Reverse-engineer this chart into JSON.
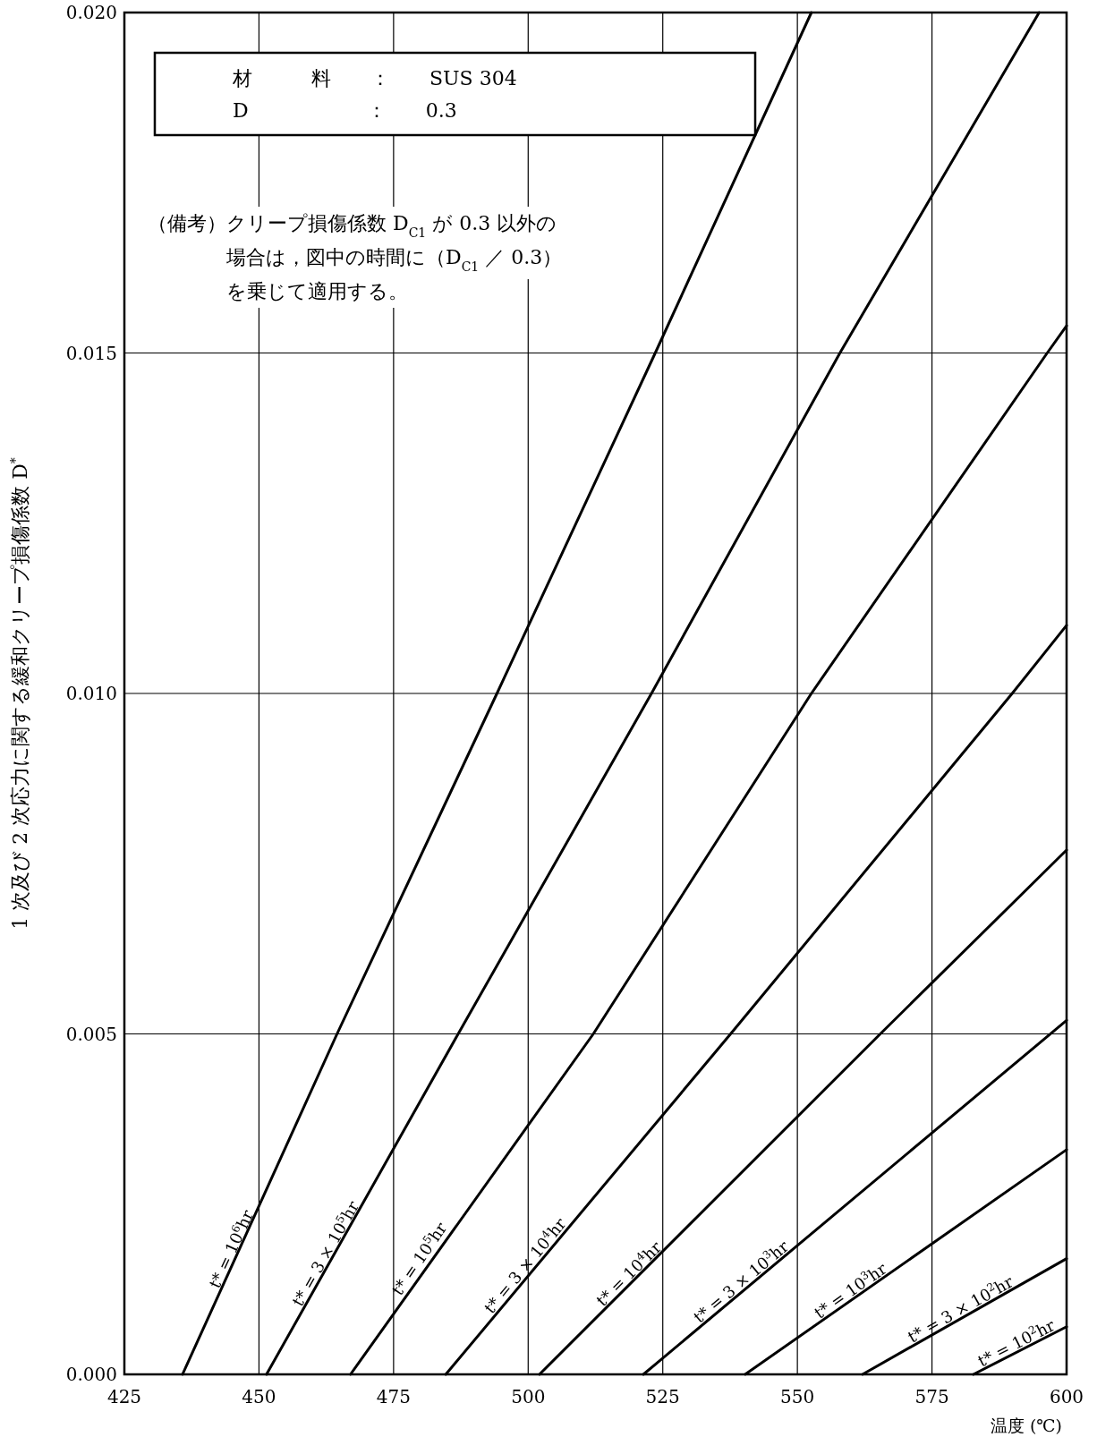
{
  "chart_data": {
    "type": "line",
    "xlabel": "温度 (℃)",
    "ylabel": "1 次及び 2 次応力に関する緩和クリープ損傷係数 D$^{*}$",
    "annotations": [
      "材　　　料　　：　　SUS 304",
      "D　　　　　　：　　0.3",
      "（備考）クリープ損傷係数 D$_{C1}$ が 0.3 以外の",
      "場合は，図中の時間に（D$_{C1}$ ／ 0.3）",
      "を乗じて適用する。"
    ],
    "xlim": [
      425,
      600
    ],
    "ylim": [
      0,
      0.02
    ],
    "xticks": [
      425,
      450,
      475,
      500,
      525,
      550,
      575,
      600
    ],
    "yticks": [
      {
        "value": 0,
        "label": "0.000"
      },
      {
        "value": 0.005,
        "label": "0.005"
      },
      {
        "value": 0.01,
        "label": "0.010"
      },
      {
        "value": 0.015,
        "label": "0.015"
      },
      {
        "value": 0.02,
        "label": "0.020"
      }
    ],
    "grid": true,
    "series": [
      {
        "name": "t* = 10$^{6}$hr",
        "color": "#000000",
        "x": [
          435.8,
          464.5,
          494.2,
          523.6,
          552.6
        ],
        "values": [
          0,
          0.005,
          0.01,
          0.015,
          0.02
        ]
      },
      {
        "name": "t* = 3 × 10$^{5}$hr",
        "color": "#000000",
        "x": [
          451.4,
          487.0,
          522.9,
          557.9,
          594.9
        ],
        "values": [
          0,
          0.005,
          0.01,
          0.015,
          0.02
        ]
      },
      {
        "name": "t* = 10$^{5}$hr",
        "color": "#000000",
        "x": [
          467.0,
          512.1,
          552.6,
          596.4,
          600
        ],
        "values": [
          0,
          0.005,
          0.01,
          0.015,
          0.0154
        ]
      },
      {
        "name": "t* = 3 × 10$^{4}$hr",
        "color": "#000000",
        "x": [
          484.7,
          537.6,
          589.9,
          600
        ],
        "values": [
          0,
          0.005,
          0.01,
          0.011
        ]
      },
      {
        "name": "t* = 10$^{4}$hr",
        "color": "#000000",
        "x": [
          502.1,
          565.4,
          600
        ],
        "values": [
          0,
          0.005,
          0.0077
        ]
      },
      {
        "name": "t* = 3 × 10$^{3}$hr",
        "color": "#000000",
        "x": [
          521.4,
          600
        ],
        "values": [
          0,
          0.0052
        ]
      },
      {
        "name": "t* = 10$^{3}$hr",
        "color": "#000000",
        "x": [
          540.3,
          600
        ],
        "values": [
          0,
          0.0033
        ]
      },
      {
        "name": "t* = 3 × 10$^{2}$hr",
        "color": "#000000",
        "x": [
          562.1,
          600
        ],
        "values": [
          0,
          0.0017
        ]
      },
      {
        "name": "t* = 10$^{2}$hr",
        "color": "#000000",
        "x": [
          582.7,
          600
        ],
        "values": [
          0,
          0.0007
        ]
      }
    ]
  }
}
